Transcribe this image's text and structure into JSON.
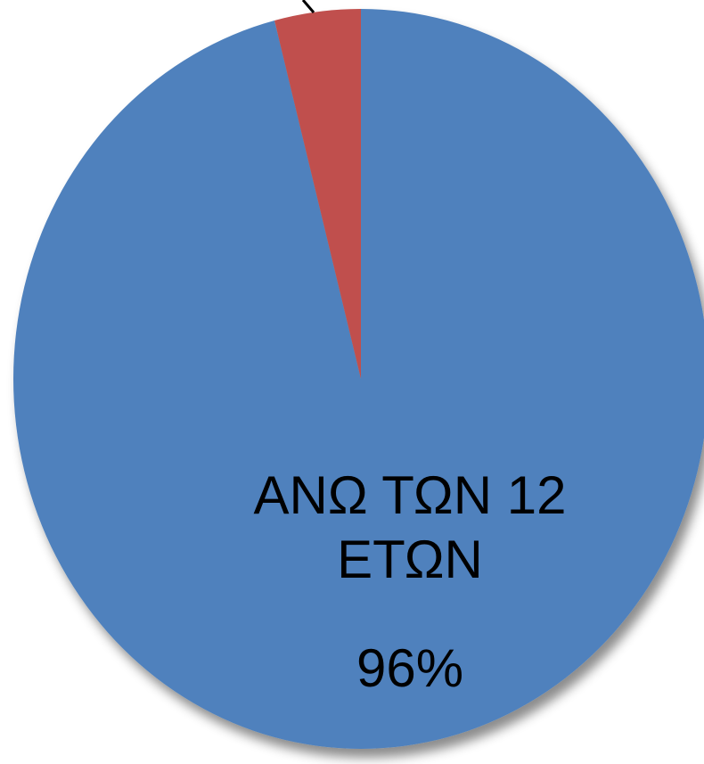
{
  "chart_data": {
    "type": "pie",
    "categories": [
      "ΑΝΩ ΤΩΝ 12 ΕΤΩΝ",
      null
    ],
    "values": [
      96,
      4
    ],
    "value_labels": [
      "96%",
      null
    ],
    "colors": [
      "#4f81bd",
      "#c0504d"
    ]
  }
}
